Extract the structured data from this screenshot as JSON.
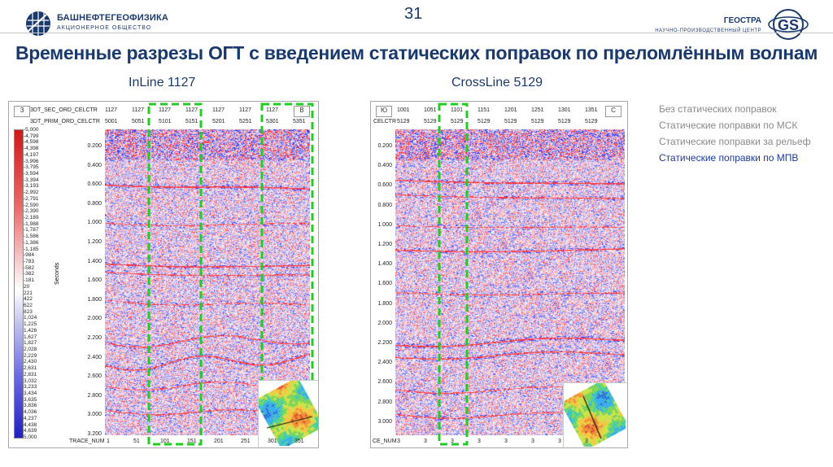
{
  "header": {
    "company_left": "БАШНЕФТЕГЕОФИЗИКА",
    "company_left_sub": "АКЦИОНЕРНОЕ ОБЩЕСТВО",
    "company_right": "ГЕОСТРА",
    "company_right_sub": "НАУЧНО-ПРОИЗВОДСТВЕННЫЙ ЦЕНТР",
    "badge": "GS",
    "page_number": "31"
  },
  "title": "Временные разрезы ОГТ с введением статических поправок по преломлённым волнам",
  "legend": {
    "items": [
      {
        "label": "Без статических поправок",
        "active": false
      },
      {
        "label": "Статические поправки по МСК",
        "active": false
      },
      {
        "label": "Статические поправки за рельеф",
        "active": false
      },
      {
        "label": "Статические поправки по МПВ",
        "active": true
      }
    ]
  },
  "left_section": {
    "title": "InLine 1127",
    "dir_left": "З",
    "dir_right": "В",
    "row1_label": "3DT_SEC_ORD_CELCTR",
    "row1_values": [
      "1127",
      "1127",
      "1127",
      "1127",
      "1127",
      "1127",
      "1127",
      "1127"
    ],
    "row2_label": "3DT_PRIM_ORD_CELCTR",
    "row2_values": [
      "5001",
      "5051",
      "5101",
      "5151",
      "5201",
      "5251",
      "5301",
      "5351"
    ],
    "y_axis_label": "Seconds",
    "y_ticks": [
      "0.200",
      "0.400",
      "0.600",
      "0.800",
      "1.000",
      "1.200",
      "1.400",
      "1.600",
      "1.800",
      "2.000",
      "2.200",
      "2.400",
      "2.600",
      "2.800",
      "3.000",
      "3.200"
    ],
    "trace_label": "TRACE_NUM",
    "trace_values": [
      "1",
      "51",
      "101",
      "151",
      "201",
      "251",
      "301",
      "351"
    ],
    "colorbar_values": [
      "-5,000",
      "-4,799",
      "-4,598",
      "-4,398",
      "-4,197",
      "-3,996",
      "-3,795",
      "-3,594",
      "-3,394",
      "-3,193",
      "-2,992",
      "-2,791",
      "-2,590",
      "-2,390",
      "-2,189",
      "-1,988",
      "-1,787",
      "-1,586",
      "-1,386",
      "-1,185",
      "-984",
      "-783",
      "-582",
      "-382",
      "-181",
      "20",
      "221",
      "422",
      "622",
      "823",
      "1,024",
      "1,225",
      "1,426",
      "1,627",
      "1,827",
      "2,028",
      "2,229",
      "2,430",
      "2,631",
      "2,831",
      "3,032",
      "3,233",
      "3,434",
      "3,635",
      "3,836",
      "4,036",
      "4,237",
      "4,438",
      "4,639",
      "5,000"
    ]
  },
  "right_section": {
    "title": "CrossLine 5129",
    "dir_left": "Ю",
    "dir_right": "С",
    "row1_label": "",
    "row1_values": [
      "1001",
      "1051",
      "1101",
      "1151",
      "1201",
      "1251",
      "1301",
      "1351"
    ],
    "row2_label": "CELCTR",
    "row2_values": [
      "5129",
      "5129",
      "5129",
      "5129",
      "5129",
      "5129",
      "5129",
      "5129"
    ],
    "y_ticks": [
      "0.200",
      "0.400",
      "0.600",
      "0.800",
      "1.000",
      "1.200",
      "1.400",
      "1.600",
      "1.800",
      "2.000",
      "2.200",
      "2.400",
      "2.600",
      "2.800",
      "3.000"
    ],
    "trace_label": "CE_NUM",
    "trace_values": [
      "3",
      "3",
      "3",
      "3",
      "3",
      "3",
      "3",
      "3"
    ]
  },
  "colors": {
    "brand_blue": "#1a3a6e",
    "highlight_green": "#22cc22",
    "seismic_red": "#c8202a",
    "seismic_blue": "#1f3fa0"
  }
}
